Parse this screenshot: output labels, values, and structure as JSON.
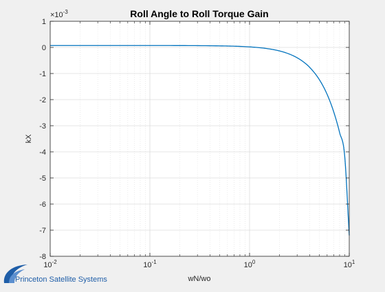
{
  "chart_data": {
    "type": "line",
    "title": "Roll Angle to Roll Torque Gain",
    "xlabel": "wN/wo",
    "ylabel": "kX",
    "xscale": "log",
    "xlim": [
      0.01,
      10
    ],
    "ylim": [
      -8,
      1
    ],
    "y_multiplier": "×10",
    "y_multiplier_exp": "-3",
    "grid": true,
    "x_ticks": [
      {
        "value": 0.01,
        "base": "10",
        "exp": "-2"
      },
      {
        "value": 0.1,
        "base": "10",
        "exp": "-1"
      },
      {
        "value": 1,
        "base": "10",
        "exp": "0"
      },
      {
        "value": 10,
        "base": "10",
        "exp": "1"
      }
    ],
    "y_ticks": [
      1,
      0,
      -1,
      -2,
      -3,
      -4,
      -5,
      -6,
      -7,
      -8
    ],
    "y_tick_labels": [
      "1",
      "0",
      "-1",
      "-2",
      "-3",
      "-4",
      "-5",
      "-6",
      "-7",
      "-8"
    ],
    "series": [
      {
        "color": "#0072bd",
        "x": [
          0.01,
          0.1,
          0.5,
          1,
          1.5,
          2,
          2.5,
          3,
          3.5,
          4,
          5,
          6,
          7,
          8,
          9,
          10
        ],
        "y": [
          0.072,
          0.072,
          0.059,
          0.02,
          -0.045,
          -0.136,
          -0.253,
          -0.396,
          -0.565,
          -0.76,
          -1.228,
          -1.8,
          -2.48,
          -3.26,
          -4.16,
          -7.2
        ]
      }
    ]
  },
  "logo": {
    "text": "Princeton Satellite Systems",
    "color": "#1f5ea8"
  }
}
